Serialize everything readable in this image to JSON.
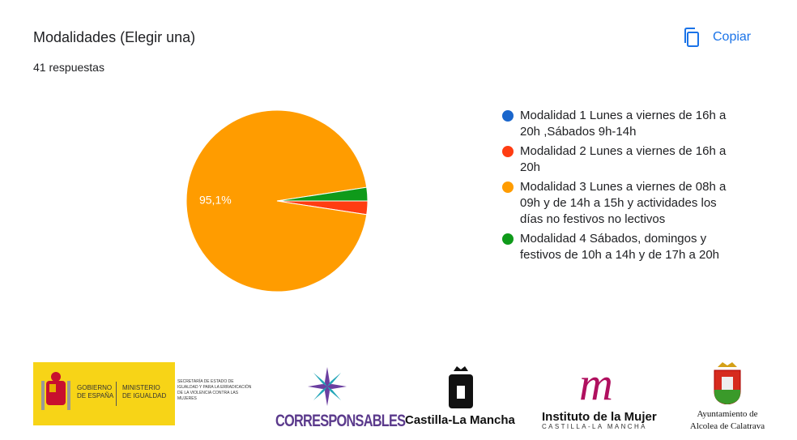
{
  "chart_data": {
    "type": "pie",
    "title": "Modalidades (Elegir una)",
    "subtitle": "41 respuestas",
    "categories": [
      "Modalidad 1 Lunes a viernes de 16h a 20h ,Sábados 9h-14h",
      "Modalidad 2 Lunes a viernes de 16h a 20h",
      "Modalidad 3 Lunes a viernes de 08h a 09h y de 14h a 15h y actividades los días no festivos no lectivos",
      "Modalidad 4 Sábados, domingos y festivos de 10h a 14h y de 17h a 20h"
    ],
    "values": [
      0,
      2.4,
      95.1,
      2.4
    ],
    "value_labels": [
      null,
      null,
      "95,1%",
      null
    ],
    "colors": [
      "#1a66cc",
      "#ff3d12",
      "#ff9c00",
      "#0f9a1a"
    ],
    "legend": "right"
  },
  "copy_button": "Copiar",
  "logos": {
    "gobierno": "GOBIERNO DE ESPAÑA",
    "ministerio": "MINISTERIO DE IGUALDAD",
    "secretaria": "SECRETARÍA DE ESTADO DE IGUALDAD Y PARA LA ERRADICACIÓN DE LA VIOLENCIA CONTRA LAS MUJERES",
    "corresponsables": "CORRESPONSABLES",
    "castilla": "Castilla-La Mancha",
    "instituto": "Instituto de la Mujer",
    "instituto_sub": "CASTILLA-LA MANCHA",
    "ayuntamiento": "Ayuntamiento de",
    "ayuntamiento_town": "Alcolea de Calatrava"
  }
}
